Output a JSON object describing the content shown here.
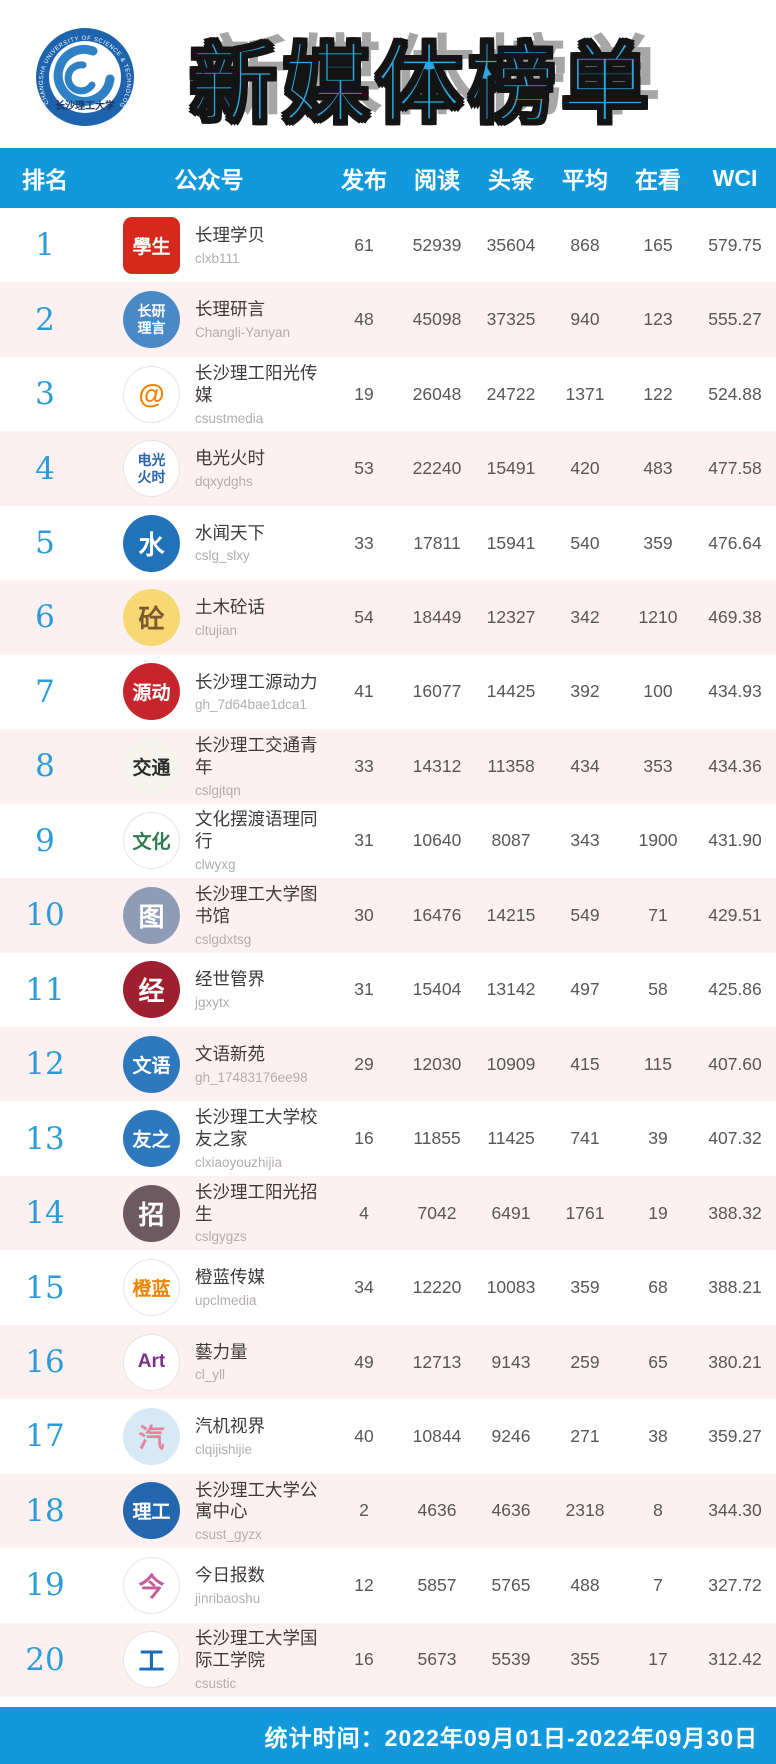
{
  "header": {
    "title": "新媒体榜单",
    "logo": {
      "ring_text": "CHANGSHA UNIVERSITY OF SCIENCE & TECHNOLOGY",
      "name_zh": "长沙理工大学",
      "ring_color": "#1e63ad",
      "swirl_color": "#2e81c4"
    }
  },
  "colors": {
    "bar_blue": "#1199dc",
    "row_pink": "#fcf0f0",
    "rank_blue": "#2b9cd8",
    "title_blue": "#2aa7e1"
  },
  "table": {
    "columns": [
      "排名",
      "公众号",
      "发布",
      "阅读",
      "头条",
      "平均",
      "在看",
      "WCI"
    ],
    "rows": [
      {
        "rank": "1",
        "name": "长理学贝",
        "id": "clxb111",
        "publish": "61",
        "read": "52939",
        "headline": "35604",
        "average": "868",
        "watch": "165",
        "wci": "579.75",
        "two_line": false,
        "avatar": {
          "shape": "square",
          "bg": "#d7281e",
          "color": "#ffffff",
          "label": "學生",
          "icon": "red-seal-stamp"
        }
      },
      {
        "rank": "2",
        "name": "长理研言",
        "id": "Changli-Yanyan",
        "publish": "48",
        "read": "45098",
        "headline": "37325",
        "average": "940",
        "watch": "123",
        "wci": "555.27",
        "two_line": false,
        "avatar": {
          "shape": "circle",
          "bg": "#4a89c8",
          "color": "#ffffff",
          "label": "长研理言",
          "icon": "blue-disc-characters"
        }
      },
      {
        "rank": "3",
        "name": "长沙理工阳光传媒",
        "id": "csustmedia",
        "publish": "19",
        "read": "26048",
        "headline": "24722",
        "average": "1371",
        "watch": "122",
        "wci": "524.88",
        "two_line": false,
        "avatar": {
          "shape": "circle",
          "bg": "#ffffff",
          "color": "#f08300",
          "label": "@",
          "icon": "orange-sun-at"
        }
      },
      {
        "rank": "4",
        "name": "电光火时",
        "id": "dqxydghs",
        "publish": "53",
        "read": "22240",
        "headline": "15491",
        "average": "420",
        "watch": "483",
        "wci": "477.58",
        "two_line": false,
        "avatar": {
          "shape": "circle",
          "bg": "#ffffff",
          "color": "#2a64ad",
          "label": "电光火时",
          "icon": "wordmark-logo"
        }
      },
      {
        "rank": "5",
        "name": "水闻天下",
        "id": "cslg_slxy",
        "publish": "33",
        "read": "17811",
        "headline": "15941",
        "average": "540",
        "watch": "359",
        "wci": "476.64",
        "two_line": false,
        "avatar": {
          "shape": "circle",
          "bg": "#2272b9",
          "color": "#ffffff",
          "label": "水",
          "icon": "blue-wave"
        }
      },
      {
        "rank": "6",
        "name": "土木砼话",
        "id": "cltujian",
        "publish": "54",
        "read": "18449",
        "headline": "12327",
        "average": "342",
        "watch": "1210",
        "wci": "469.38",
        "two_line": false,
        "avatar": {
          "shape": "circle",
          "bg": "#f7d873",
          "color": "#7c5a2e",
          "label": "砼",
          "icon": "cartoon-boy"
        }
      },
      {
        "rank": "7",
        "name": "长沙理工源动力",
        "id": "gh_7d64bae1dca1",
        "publish": "41",
        "read": "16077",
        "headline": "14425",
        "average": "392",
        "watch": "100",
        "wci": "434.93",
        "two_line": false,
        "avatar": {
          "shape": "circle",
          "bg": "#c7252c",
          "color": "#ffffff",
          "label": "源动",
          "icon": "red-seal"
        }
      },
      {
        "rank": "8",
        "name": "长沙理工交通青年",
        "id": "cslgjtqn",
        "publish": "33",
        "read": "14312",
        "headline": "11358",
        "average": "434",
        "watch": "353",
        "wci": "434.36",
        "two_line": false,
        "avatar": {
          "shape": "circle",
          "bg": "#f6f4ef",
          "color": "#2b2b2b",
          "label": "交通",
          "icon": "calligraphy"
        }
      },
      {
        "rank": "9",
        "name": "文化摆渡语理同行",
        "id": "clwyxg",
        "publish": "31",
        "read": "10640",
        "headline": "8087",
        "average": "343",
        "watch": "1900",
        "wci": "431.90",
        "two_line": false,
        "avatar": {
          "shape": "circle",
          "bg": "#ffffff",
          "color": "#2e7d4f",
          "label": "文化",
          "icon": "laurel-wreath-boat"
        }
      },
      {
        "rank": "10",
        "name": "长沙理工大学图书馆",
        "id": "cslgdxtsg",
        "publish": "30",
        "read": "16476",
        "headline": "14215",
        "average": "549",
        "watch": "71",
        "wci": "429.51",
        "two_line": false,
        "avatar": {
          "shape": "circle",
          "bg": "#8e9db5",
          "color": "#ffffff",
          "label": "图",
          "icon": "library-building-photo"
        }
      },
      {
        "rank": "11",
        "name": "经世管界",
        "id": "jgxytx",
        "publish": "31",
        "read": "15404",
        "headline": "13142",
        "average": "497",
        "watch": "58",
        "wci": "425.86",
        "two_line": false,
        "avatar": {
          "shape": "circle",
          "bg": "#9e1f2e",
          "color": "#ffffff",
          "label": "经",
          "icon": "dark-red-emblem"
        }
      },
      {
        "rank": "12",
        "name": "文语新苑",
        "id": "gh_17483176ee98",
        "publish": "29",
        "read": "12030",
        "headline": "10909",
        "average": "415",
        "watch": "115",
        "wci": "407.60",
        "two_line": false,
        "avatar": {
          "shape": "circle",
          "bg": "#2e78bd",
          "color": "#ffffff",
          "label": "文语",
          "icon": "blue-round-logo"
        }
      },
      {
        "rank": "13",
        "name": "长沙理工大学校友之家",
        "id": "clxiaoyouzhijia",
        "publish": "16",
        "read": "11855",
        "headline": "11425",
        "average": "741",
        "watch": "39",
        "wci": "407.32",
        "two_line": true,
        "avatar": {
          "shape": "circle",
          "bg": "#2e78bd",
          "color": "#ffffff",
          "label": "友之",
          "icon": "university-round-logo"
        }
      },
      {
        "rank": "14",
        "name": "长沙理工阳光招生",
        "id": "cslgygzs",
        "publish": "4",
        "read": "7042",
        "headline": "6491",
        "average": "1761",
        "watch": "19",
        "wci": "388.32",
        "two_line": false,
        "avatar": {
          "shape": "circle",
          "bg": "#6d5a60",
          "color": "#ffffff",
          "label": "招",
          "icon": "campus-photo"
        }
      },
      {
        "rank": "15",
        "name": "橙蓝传媒",
        "id": "upclmedia",
        "publish": "34",
        "read": "12220",
        "headline": "10083",
        "average": "359",
        "watch": "68",
        "wci": "388.21",
        "two_line": false,
        "avatar": {
          "shape": "circle",
          "bg": "#ffffff",
          "color": "#f08300",
          "label": "橙蓝",
          "icon": "orange-blue-swoosh"
        }
      },
      {
        "rank": "16",
        "name": "藝力量",
        "id": "cl_yll",
        "publish": "49",
        "read": "12713",
        "headline": "9143",
        "average": "259",
        "watch": "65",
        "wci": "380.21",
        "two_line": false,
        "avatar": {
          "shape": "circle",
          "bg": "#ffffff",
          "color": "#7b2f8e",
          "label": "Art",
          "icon": "art-wordmark"
        }
      },
      {
        "rank": "17",
        "name": "汽机视界",
        "id": "clqijishijie",
        "publish": "40",
        "read": "10844",
        "headline": "9246",
        "average": "271",
        "watch": "38",
        "wci": "359.27",
        "two_line": false,
        "avatar": {
          "shape": "circle",
          "bg": "#d8e9f6",
          "color": "#e8829a",
          "label": "汽",
          "icon": "anime-fox-girl"
        }
      },
      {
        "rank": "18",
        "name": "长沙理工大学公寓中心",
        "id": "csust_gyzx",
        "publish": "2",
        "read": "4636",
        "headline": "4636",
        "average": "2318",
        "watch": "8",
        "wci": "344.30",
        "two_line": false,
        "avatar": {
          "shape": "circle",
          "bg": "#2368ae",
          "color": "#ffffff",
          "label": "理工",
          "icon": "csust-round-logo"
        }
      },
      {
        "rank": "19",
        "name": "今日报数",
        "id": "jinribaoshu",
        "publish": "12",
        "read": "5857",
        "headline": "5765",
        "average": "488",
        "watch": "7",
        "wci": "327.72",
        "two_line": false,
        "avatar": {
          "shape": "circle",
          "bg": "#ffffff",
          "color": "#c45a9a",
          "label": "今",
          "icon": "pink-round-seal"
        }
      },
      {
        "rank": "20",
        "name": "长沙理工大学国际工学院",
        "id": "csustic",
        "publish": "16",
        "read": "5673",
        "headline": "5539",
        "average": "355",
        "watch": "17",
        "wci": "312.42",
        "two_line": true,
        "avatar": {
          "shape": "circle",
          "bg": "#ffffff",
          "color": "#1c6cb5",
          "label": "工",
          "icon": "blue-figure-logo"
        }
      }
    ]
  },
  "footer": {
    "stat_time": "统计时间：2022年09月01日-2022年09月30日"
  }
}
